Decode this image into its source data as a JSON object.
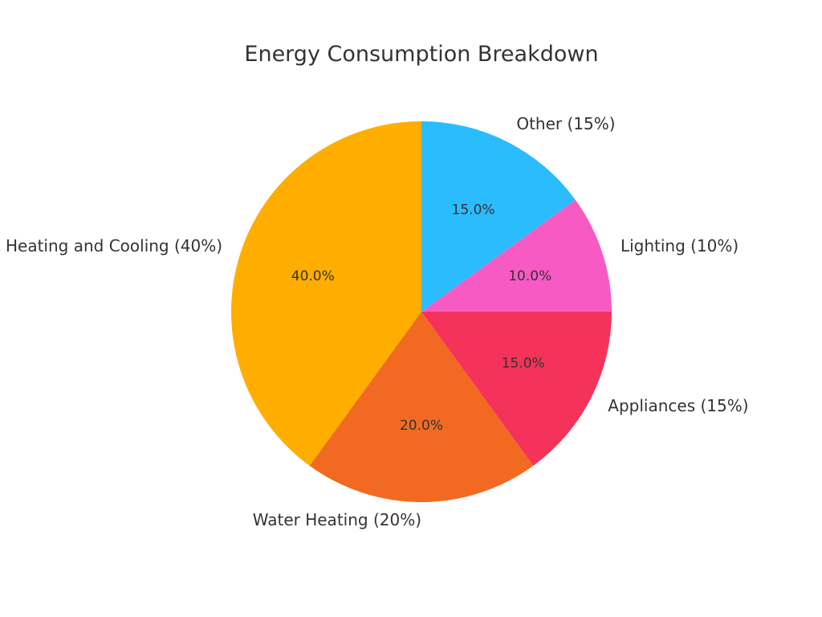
{
  "chart_data": {
    "type": "pie",
    "title": "Energy Consumption Breakdown",
    "start_angle_deg": 90,
    "direction": "counterclockwise",
    "slices": [
      {
        "label": "Heating and Cooling (40%)",
        "value": 40,
        "pct_label": "40.0%",
        "color": "#FFAE00"
      },
      {
        "label": "Water Heating (20%)",
        "value": 20,
        "pct_label": "20.0%",
        "color": "#F26A22"
      },
      {
        "label": "Appliances (15%)",
        "value": 15,
        "pct_label": "15.0%",
        "color": "#F53259"
      },
      {
        "label": "Lighting (10%)",
        "value": 10,
        "pct_label": "10.0%",
        "color": "#F75BC3"
      },
      {
        "label": "Other (15%)",
        "value": 15,
        "pct_label": "15.0%",
        "color": "#2BBCFD"
      }
    ]
  }
}
